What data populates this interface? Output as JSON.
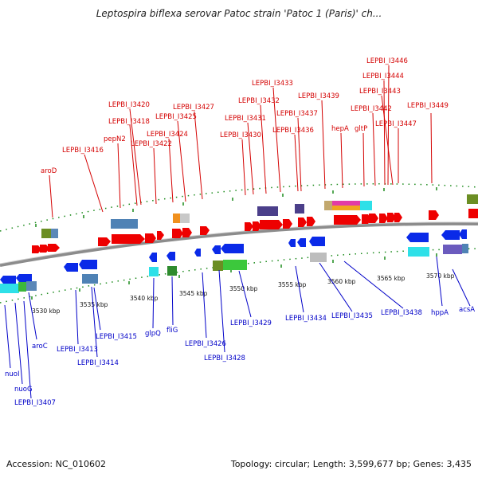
{
  "title": "Leptospira biflexa serovar Patoc strain 'Patoc 1 (Paris)' ch...",
  "footer": {
    "accession": "Accession: NC_010602",
    "topology": "Topology: circular; Length: 3,599,677 bp; Genes: 3,435"
  },
  "colors": {
    "top_label": "#d40000",
    "bottom_label": "#0000c8",
    "backbone": "#8c8c8c",
    "tick": "#1a8a1a"
  },
  "top_labels": [
    {
      "text": "LEPBI_I3446"
    },
    {
      "text": "LEPBI_I3444"
    },
    {
      "text": "LEPBI_I3443"
    },
    {
      "text": "LEPBI_I3433"
    },
    {
      "text": "LEPBI_I3439"
    },
    {
      "text": "LEPBI_I3432"
    },
    {
      "text": "LEPBI_I3437"
    },
    {
      "text": "LEPBI_I3442"
    },
    {
      "text": "LEPBI_I3449"
    },
    {
      "text": "LEPBI_I3420"
    },
    {
      "text": "LEPBI_I3427"
    },
    {
      "text": "LEPBI_I3425"
    },
    {
      "text": "LEPBI_I3431"
    },
    {
      "text": "LEPBI_I3418"
    },
    {
      "text": "LEPBI_I3447"
    },
    {
      "text": "LEPBI_I3424"
    },
    {
      "text": "hepA"
    },
    {
      "text": "gltP"
    },
    {
      "text": "LEPBI_I3436"
    },
    {
      "text": "LEPBI_I3430"
    },
    {
      "text": "pepN2"
    },
    {
      "text": "LEPBI_I3422"
    },
    {
      "text": "LEPBI_I3416"
    },
    {
      "text": "aroD"
    }
  ],
  "bottom_labels": [
    {
      "text": "hppA"
    },
    {
      "text": "acsA"
    },
    {
      "text": "LEPBI_I3438"
    },
    {
      "text": "LEPBI_I3434"
    },
    {
      "text": "LEPBI_I3435"
    },
    {
      "text": "LEPBI_I3429"
    },
    {
      "text": "glpQ"
    },
    {
      "text": "fliG"
    },
    {
      "text": "LEPBI_I3415"
    },
    {
      "text": "aroC"
    },
    {
      "text": "LEPBI_I3426"
    },
    {
      "text": "LEPBI_I3413"
    },
    {
      "text": "LEPBI_I3428"
    },
    {
      "text": "LEPBI_I3414"
    },
    {
      "text": "nuoI"
    },
    {
      "text": "nuoG"
    },
    {
      "text": "LEPBI_I3407"
    }
  ],
  "ticks": [
    {
      "text": "3530 kbp"
    },
    {
      "text": "3535 kbp"
    },
    {
      "text": "3540 kbp"
    },
    {
      "text": "3545 kbp"
    },
    {
      "text": "3550 kbp"
    },
    {
      "text": "3555 kbp"
    },
    {
      "text": "3560 kbp"
    },
    {
      "text": "3565 kbp"
    },
    {
      "text": "3570 kbp"
    }
  ]
}
